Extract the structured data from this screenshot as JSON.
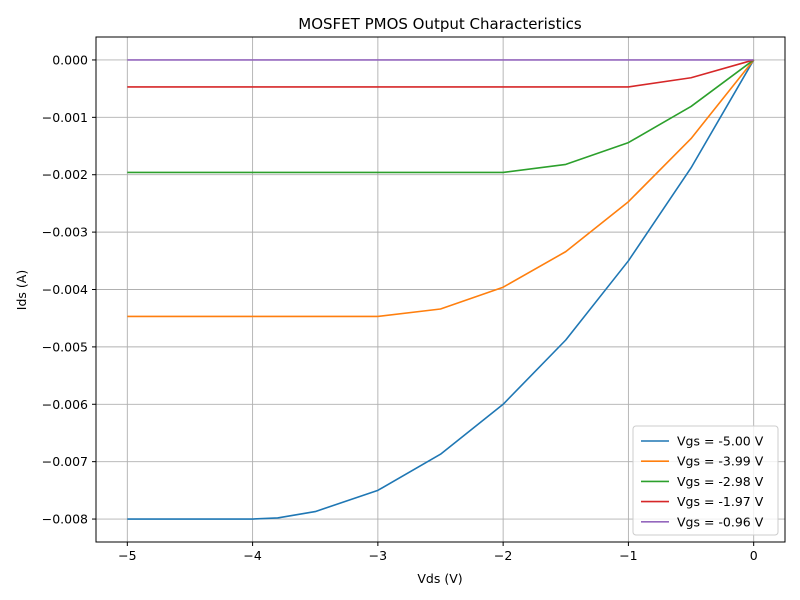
{
  "chart_data": {
    "type": "line",
    "title": "MOSFET PMOS Output Characteristics",
    "xlabel": "Vds (V)",
    "ylabel": "Ids (A)",
    "xlim": [
      -5.25,
      0.25
    ],
    "ylim": [
      -0.0084,
      0.0004
    ],
    "xticks": [
      -5,
      -4,
      -3,
      -2,
      -1,
      0
    ],
    "xtick_labels": [
      "−5",
      "−4",
      "−3",
      "−2",
      "−1",
      "0"
    ],
    "yticks": [
      0.0,
      -0.001,
      -0.002,
      -0.003,
      -0.004,
      -0.005,
      -0.006,
      -0.007,
      -0.008
    ],
    "ytick_labels": [
      "0.000",
      "−0.001",
      "−0.002",
      "−0.003",
      "−0.004",
      "−0.005",
      "−0.006",
      "−0.007",
      "−0.008"
    ],
    "grid": true,
    "legend_position": "lower-right",
    "x": [
      -5.0,
      -4.5,
      -4.0,
      -3.8,
      -3.5,
      -3.0,
      -2.5,
      -2.0,
      -1.5,
      -1.0,
      -0.5,
      0.0
    ],
    "series": [
      {
        "name": "Vgs = -5.00 V",
        "color": "#1f77b4",
        "values": [
          -0.008,
          -0.008,
          -0.008,
          -0.00798,
          -0.00787,
          -0.0075,
          -0.00687,
          -0.006,
          -0.00488,
          -0.0035,
          -0.00188,
          0.0
        ]
      },
      {
        "name": "Vgs = -3.99 V",
        "color": "#ff7f0e",
        "values": [
          -0.00447,
          -0.00447,
          -0.00447,
          -0.00447,
          -0.00447,
          -0.00447,
          -0.00434,
          -0.00396,
          -0.00334,
          -0.00247,
          -0.00137,
          0.0
        ]
      },
      {
        "name": "Vgs = -2.98 V",
        "color": "#2ca02c",
        "values": [
          -0.00196,
          -0.00196,
          -0.00196,
          -0.00196,
          -0.00196,
          -0.00196,
          -0.00196,
          -0.00196,
          -0.00182,
          -0.00144,
          -0.00081,
          0.0
        ]
      },
      {
        "name": "Vgs = -1.97 V",
        "color": "#d62728",
        "values": [
          -0.00047,
          -0.00047,
          -0.00047,
          -0.00047,
          -0.00047,
          -0.00047,
          -0.00047,
          -0.00047,
          -0.00047,
          -0.00047,
          -0.00031,
          0.0
        ]
      },
      {
        "name": "Vgs = -0.96 V",
        "color": "#9467bd",
        "values": [
          0.0,
          0.0,
          0.0,
          0.0,
          0.0,
          0.0,
          0.0,
          0.0,
          0.0,
          0.0,
          0.0,
          0.0
        ]
      }
    ]
  }
}
